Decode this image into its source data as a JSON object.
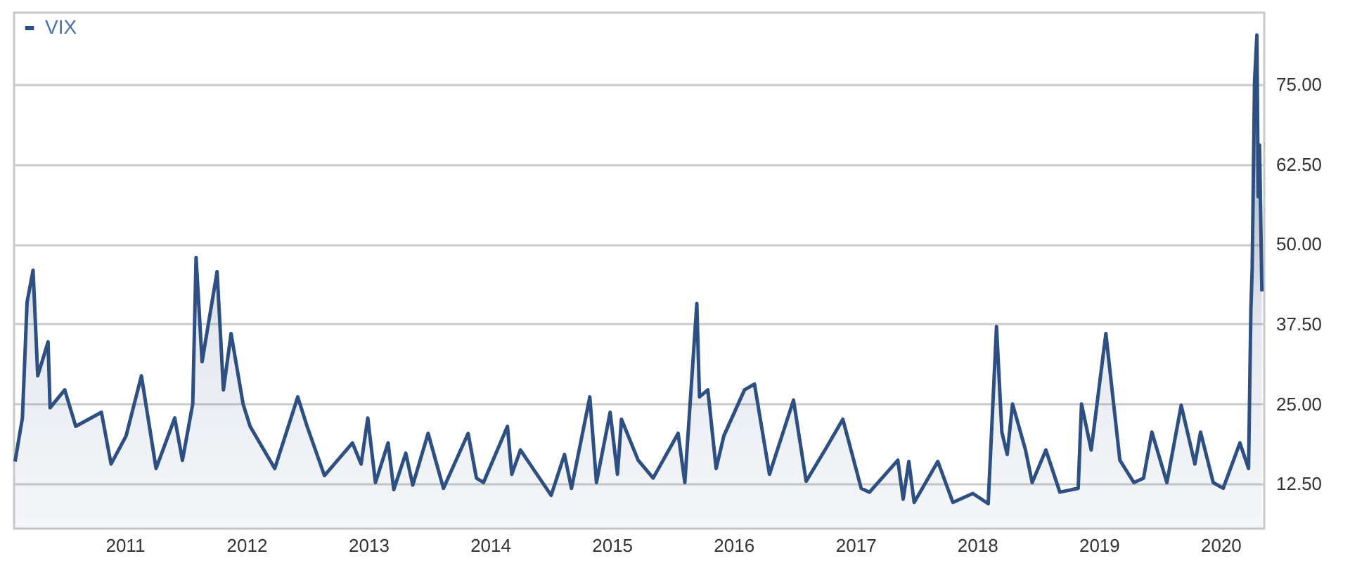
{
  "chart_data": {
    "type": "area",
    "legend": "top left",
    "grid": "y",
    "xlim": [
      "2010-02-03",
      "2020-05-11"
    ],
    "xticks": [
      {
        "value": "2011-01-01",
        "label": "2011"
      },
      {
        "value": "2012-01-01",
        "label": "2012"
      },
      {
        "value": "2013-01-01",
        "label": "2013"
      },
      {
        "value": "2014-01-01",
        "label": "2014"
      },
      {
        "value": "2015-01-01",
        "label": "2015"
      },
      {
        "value": "2016-01-01",
        "label": "2016"
      },
      {
        "value": "2017-01-01",
        "label": "2017"
      },
      {
        "value": "2018-01-01",
        "label": "2018"
      },
      {
        "value": "2019-01-01",
        "label": "2019"
      },
      {
        "value": "2020-01-01",
        "label": "2020"
      }
    ],
    "ylim": [
      5.5,
      86.2
    ],
    "yticks": [
      {
        "value": 12.5,
        "label": "12.50"
      },
      {
        "value": 25,
        "label": "25.00"
      },
      {
        "value": 37.5,
        "label": "37.50"
      },
      {
        "value": 50,
        "label": "50.00"
      },
      {
        "value": 62.5,
        "label": "62.50"
      },
      {
        "value": 75,
        "label": "75.00"
      }
    ],
    "x": [
      "2010-02-06",
      "2010-02-28",
      "2010-03-14",
      "2010-04-01",
      "2010-04-15",
      "2010-05-16",
      "2010-05-22",
      "2010-07-05",
      "2010-08-07",
      "2010-10-23",
      "2010-11-21",
      "2011-01-05",
      "2011-02-20",
      "2011-04-05",
      "2011-05-31",
      "2011-06-23",
      "2011-07-24",
      "2011-08-03",
      "2011-08-21",
      "2011-10-05",
      "2011-10-24",
      "2011-11-16",
      "2011-12-22",
      "2012-01-12",
      "2012-03-26",
      "2012-06-03",
      "2012-07-01",
      "2012-08-22",
      "2012-11-14",
      "2012-12-10",
      "2012-12-30",
      "2013-01-22",
      "2013-03-01",
      "2013-03-18",
      "2013-04-23",
      "2013-05-14",
      "2013-06-29",
      "2013-08-14",
      "2013-10-27",
      "2013-11-21",
      "2013-12-12",
      "2014-02-22",
      "2014-03-07",
      "2014-04-02",
      "2014-07-03",
      "2014-08-12",
      "2014-09-02",
      "2014-10-27",
      "2014-11-16",
      "2014-12-27",
      "2015-01-18",
      "2015-01-30",
      "2015-03-21",
      "2015-05-05",
      "2015-07-19",
      "2015-08-08",
      "2015-09-13",
      "2015-09-21",
      "2015-10-16",
      "2015-11-10",
      "2015-12-03",
      "2016-02-03",
      "2016-03-04",
      "2016-04-18",
      "2016-06-29",
      "2016-08-06",
      "2016-10-06",
      "2016-11-24",
      "2017-01-18",
      "2017-02-12",
      "2017-05-08",
      "2017-05-24",
      "2017-06-10",
      "2017-06-26",
      "2017-09-05",
      "2017-10-20",
      "2017-12-19",
      "2018-02-03",
      "2018-02-28",
      "2018-03-16",
      "2018-04-01",
      "2018-04-17",
      "2018-05-26",
      "2018-06-15",
      "2018-07-26",
      "2018-09-06",
      "2018-10-31",
      "2018-11-10",
      "2018-12-09",
      "2019-01-22",
      "2019-03-05",
      "2019-04-16",
      "2019-05-15",
      "2019-06-09",
      "2019-07-24",
      "2019-09-05",
      "2019-10-16",
      "2019-11-02",
      "2019-12-10",
      "2020-01-09",
      "2020-02-28",
      "2020-03-25",
      "2020-04-01",
      "2020-04-05",
      "2020-04-12",
      "2020-04-19",
      "2020-04-23",
      "2020-04-27",
      "2020-05-04"
    ],
    "series": [
      {
        "name": "VIX",
        "color": "#2e4f82",
        "values": [
          16.0,
          22.8,
          40.9,
          45.9,
          29.4,
          34.7,
          24.4,
          27.2,
          21.5,
          23.7,
          15.6,
          20.0,
          29.4,
          14.9,
          22.8,
          16.2,
          25.0,
          47.9,
          31.6,
          45.7,
          27.2,
          36.0,
          25.0,
          21.5,
          14.9,
          26.1,
          21.5,
          13.8,
          18.9,
          15.6,
          22.8,
          12.7,
          18.9,
          11.6,
          17.3,
          12.3,
          20.4,
          11.8,
          20.4,
          13.4,
          12.7,
          21.5,
          14.0,
          17.8,
          10.7,
          17.1,
          11.8,
          26.1,
          12.7,
          23.7,
          14.0,
          22.6,
          16.2,
          13.4,
          20.4,
          12.7,
          40.7,
          26.1,
          27.2,
          14.9,
          20.0,
          27.2,
          28.1,
          14.0,
          25.6,
          12.9,
          18.2,
          22.6,
          11.8,
          11.2,
          16.2,
          10.1,
          16.0,
          9.6,
          16.0,
          9.6,
          11.0,
          9.4,
          37.1,
          20.6,
          17.1,
          25.0,
          17.8,
          12.7,
          17.8,
          11.2,
          11.8,
          25.0,
          17.8,
          36.0,
          16.2,
          12.7,
          13.4,
          20.6,
          12.7,
          24.8,
          15.6,
          20.6,
          12.7,
          11.8,
          18.9,
          14.9,
          39.8,
          46.4,
          75.4,
          82.7,
          57.4,
          65.5,
          42.6
        ]
      }
    ]
  }
}
